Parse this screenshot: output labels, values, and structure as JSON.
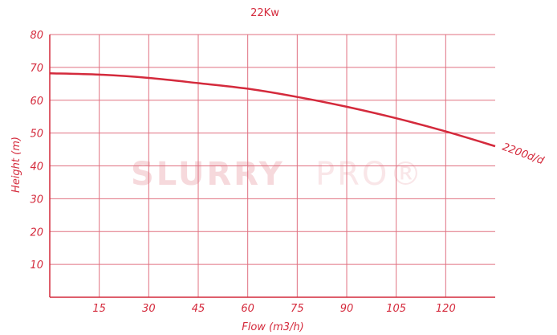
{
  "chart_data": {
    "type": "line",
    "title": "22Kw",
    "xlabel": "Flow (m3/h)",
    "ylabel": "Height (m)",
    "xlim": [
      0,
      135
    ],
    "ylim": [
      0,
      80
    ],
    "x_ticks": [
      15,
      30,
      45,
      60,
      75,
      90,
      105,
      120
    ],
    "y_ticks": [
      10,
      20,
      30,
      40,
      50,
      60,
      70,
      80
    ],
    "grid": true,
    "series": [
      {
        "name": "2200d/d",
        "x": [
          0,
          15,
          30,
          45,
          60,
          75,
          90,
          105,
          120,
          135
        ],
        "y": [
          68.2,
          67.8,
          66.8,
          65.2,
          63.5,
          61.0,
          58.0,
          54.5,
          50.5,
          46.0
        ]
      }
    ],
    "colors": {
      "line": "#d42a3c",
      "grid": "#e07080",
      "text": "#d42a3c"
    },
    "watermark": {
      "main": "SLURRY",
      "suffix": "PRO®"
    }
  }
}
